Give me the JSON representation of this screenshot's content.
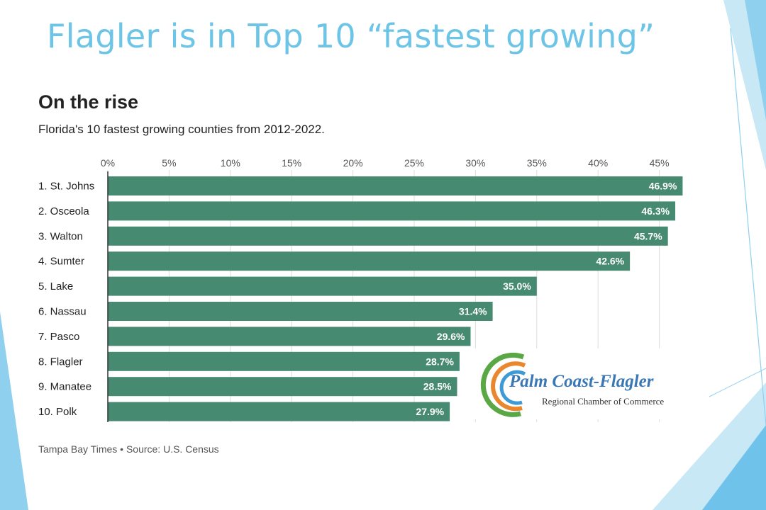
{
  "slide": {
    "title": "Flagler is in Top 10 “fastest growing”",
    "title_color": "#6cc4e6"
  },
  "chart_data": {
    "type": "bar",
    "orientation": "horizontal",
    "title": "On the rise",
    "subtitle": "Florida's 10 fastest growing counties from 2012-2022.",
    "categories": [
      "1. St. Johns",
      "2. Osceola",
      "3. Walton",
      "4. Sumter",
      "5. Lake",
      "6. Nassau",
      "7. Pasco",
      "8. Flagler",
      "9. Manatee",
      "10. Polk"
    ],
    "values": [
      46.9,
      46.3,
      45.7,
      42.6,
      35.0,
      31.4,
      29.6,
      28.7,
      28.5,
      27.9
    ],
    "value_labels": [
      "46.9%",
      "46.3%",
      "45.7%",
      "42.6%",
      "35.0%",
      "31.4%",
      "29.6%",
      "28.7%",
      "28.5%",
      "27.9%"
    ],
    "ticks": [
      0,
      5,
      10,
      15,
      20,
      25,
      30,
      35,
      40,
      45
    ],
    "tick_labels": [
      "0%",
      "5%",
      "10%",
      "15%",
      "20%",
      "25%",
      "30%",
      "35%",
      "40%",
      "45%"
    ],
    "xlim": [
      0,
      47
    ],
    "grid": true,
    "axis_position": "top",
    "bar_color": "#478a72",
    "source": "Tampa Bay Times • Source: U.S. Census"
  },
  "logo": {
    "name": "Palm Coast-Flagler",
    "subtitle": "Regional Chamber of Commerce",
    "name_color": "#3a78b5",
    "arc_colors": [
      "#5aa845",
      "#e8872e",
      "#3d9ad4"
    ]
  },
  "decor": {
    "accent_light": "#c8e8f5",
    "accent_mid": "#8fd0ee",
    "accent_dark": "#6fc3ea"
  }
}
